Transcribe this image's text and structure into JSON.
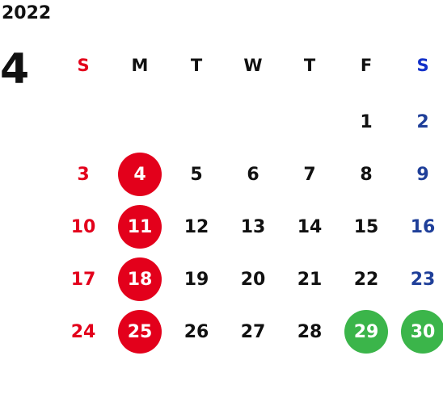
{
  "calendar": {
    "year": "2022",
    "month": "4",
    "weekdays": [
      "S",
      "M",
      "T",
      "W",
      "T",
      "F",
      "S"
    ],
    "weeks": [
      [
        "",
        "",
        "",
        "",
        "",
        "1",
        "2"
      ],
      [
        "3",
        "4",
        "5",
        "6",
        "7",
        "8",
        "9"
      ],
      [
        "10",
        "11",
        "12",
        "13",
        "14",
        "15",
        "16"
      ],
      [
        "17",
        "18",
        "19",
        "20",
        "21",
        "22",
        "23"
      ],
      [
        "24",
        "25",
        "26",
        "27",
        "28",
        "29",
        "30"
      ]
    ],
    "highlighted_red_days": [
      "4",
      "11",
      "18",
      "25"
    ],
    "highlighted_green_days": [
      "29",
      "30"
    ]
  },
  "colors": {
    "sunday": "#e3001b",
    "saturday": "#1f3f99",
    "weekday": "#111111",
    "saturday_header": "#1230c9",
    "red_circle": "#e3001b",
    "green_circle": "#3bb54a",
    "circle_text": "#ffffff"
  }
}
